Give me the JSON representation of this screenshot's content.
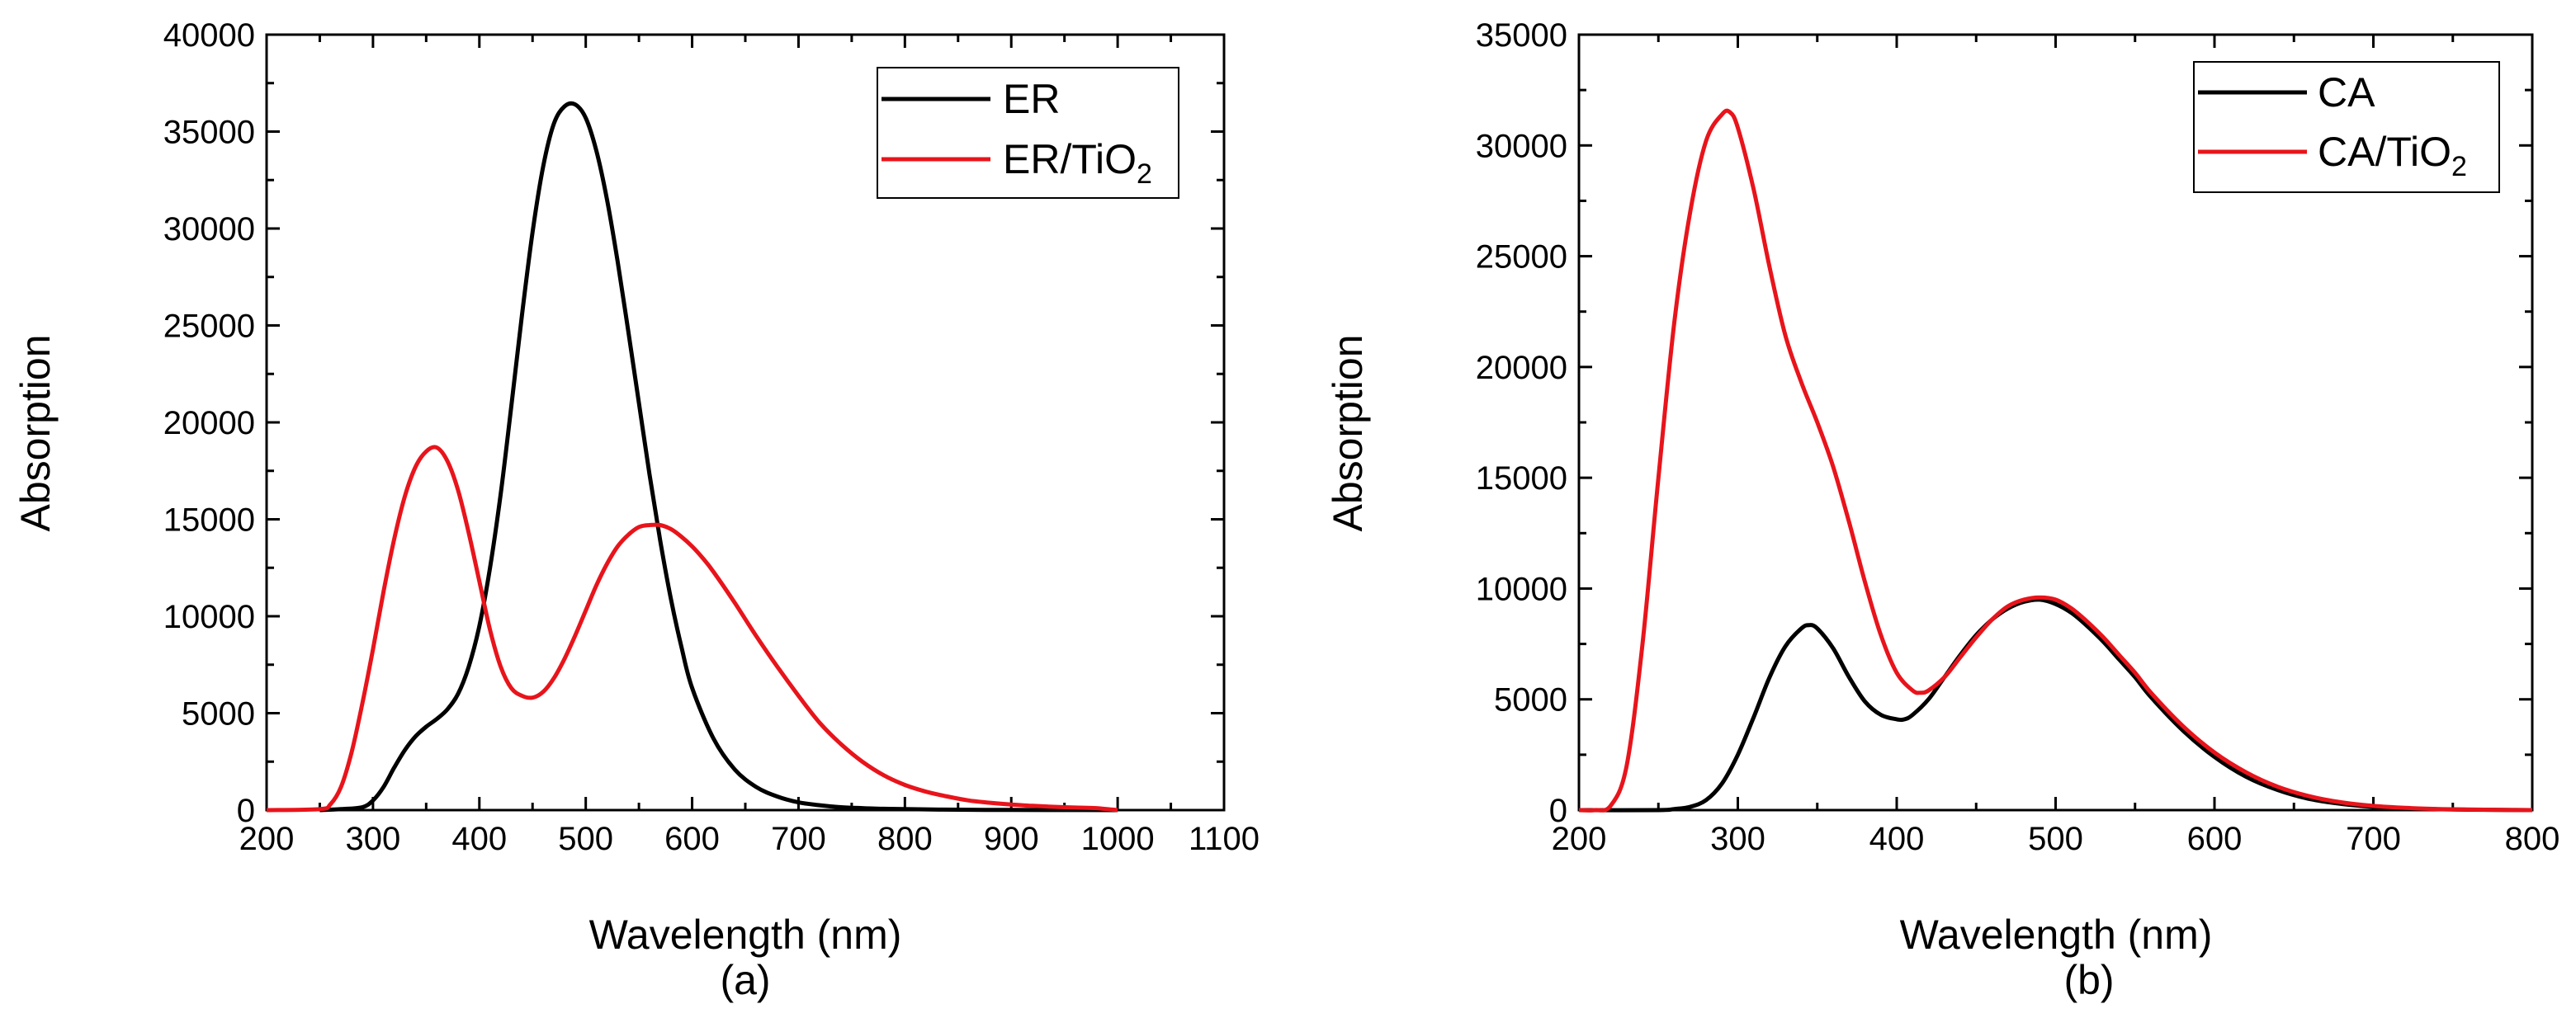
{
  "chart_data": [
    {
      "type": "line",
      "panel_label": "(a)",
      "xlabel": "Wavelength (nm)",
      "ylabel": "Absorption",
      "xlim": [
        200,
        1100
      ],
      "ylim": [
        0,
        40000
      ],
      "xticks": [
        200,
        300,
        400,
        500,
        600,
        700,
        800,
        900,
        1000,
        1100
      ],
      "yticks": [
        0,
        5000,
        10000,
        15000,
        20000,
        25000,
        30000,
        35000,
        40000
      ],
      "legend_position": "top-right",
      "grid": false,
      "series": [
        {
          "name": "ER",
          "label_main": "ER",
          "label_sub": "",
          "color": "#000000",
          "x": [
            250,
            270,
            290,
            300,
            310,
            320,
            330,
            340,
            350,
            360,
            370,
            380,
            390,
            400,
            410,
            420,
            430,
            440,
            450,
            460,
            470,
            480,
            490,
            500,
            510,
            520,
            530,
            540,
            550,
            560,
            570,
            580,
            590,
            600,
            620,
            640,
            660,
            680,
            700,
            720,
            740,
            760,
            780,
            800,
            850,
            900,
            950,
            1000
          ],
          "y": [
            0,
            50,
            150,
            500,
            1200,
            2200,
            3100,
            3800,
            4300,
            4700,
            5200,
            6000,
            7400,
            9500,
            12500,
            16300,
            20800,
            25500,
            29800,
            33200,
            35400,
            36300,
            36400,
            35700,
            34000,
            31500,
            28300,
            24700,
            21000,
            17300,
            13900,
            10900,
            8400,
            6300,
            3700,
            2100,
            1200,
            700,
            400,
            250,
            150,
            100,
            70,
            50,
            20,
            10,
            5,
            0
          ]
        },
        {
          "name": "ER/TiO2",
          "label_main": "ER/TiO",
          "label_sub": "2",
          "color": "#e8141b",
          "x": [
            200,
            250,
            260,
            270,
            280,
            290,
            300,
            310,
            320,
            330,
            340,
            350,
            360,
            370,
            380,
            390,
            400,
            410,
            420,
            430,
            440,
            450,
            460,
            470,
            480,
            490,
            500,
            510,
            520,
            530,
            540,
            550,
            560,
            570,
            580,
            590,
            600,
            610,
            620,
            640,
            660,
            680,
            700,
            720,
            740,
            760,
            780,
            800,
            820,
            840,
            860,
            880,
            900,
            920,
            940,
            960,
            980,
            1000
          ],
          "y": [
            0,
            50,
            300,
            1200,
            3000,
            5500,
            8300,
            11300,
            14000,
            16200,
            17700,
            18500,
            18700,
            18000,
            16500,
            14300,
            11800,
            9300,
            7400,
            6300,
            5900,
            5800,
            6100,
            6800,
            7800,
            9000,
            10300,
            11600,
            12700,
            13600,
            14200,
            14600,
            14700,
            14700,
            14500,
            14100,
            13600,
            13000,
            12300,
            10700,
            9000,
            7400,
            5900,
            4500,
            3400,
            2500,
            1800,
            1300,
            950,
            700,
            500,
            380,
            290,
            220,
            170,
            130,
            100,
            0
          ]
        }
      ]
    },
    {
      "type": "line",
      "panel_label": "(b)",
      "xlabel": "Wavelength (nm)",
      "ylabel": "Absorption",
      "xlim": [
        200,
        800
      ],
      "ylim": [
        0,
        35000
      ],
      "xticks": [
        200,
        300,
        400,
        500,
        600,
        700,
        800
      ],
      "yticks": [
        0,
        5000,
        10000,
        15000,
        20000,
        25000,
        30000,
        35000
      ],
      "legend_position": "top-right",
      "grid": false,
      "series": [
        {
          "name": "CA",
          "label_main": "CA",
          "label_sub": "",
          "color": "#000000",
          "x": [
            200,
            250,
            260,
            270,
            280,
            290,
            300,
            310,
            320,
            330,
            340,
            345,
            350,
            360,
            370,
            380,
            390,
            400,
            405,
            410,
            420,
            430,
            440,
            450,
            460,
            470,
            480,
            490,
            500,
            510,
            520,
            530,
            540,
            550,
            560,
            580,
            600,
            620,
            640,
            660,
            680,
            700,
            720,
            740,
            760,
            780,
            800
          ],
          "y": [
            0,
            0,
            50,
            150,
            450,
            1200,
            2500,
            4200,
            6000,
            7400,
            8200,
            8350,
            8200,
            7300,
            6000,
            4900,
            4300,
            4100,
            4100,
            4300,
            5000,
            6000,
            7000,
            7900,
            8600,
            9100,
            9400,
            9500,
            9300,
            8900,
            8300,
            7600,
            6800,
            6000,
            5100,
            3600,
            2400,
            1500,
            900,
            500,
            280,
            150,
            80,
            40,
            20,
            10,
            0
          ]
        },
        {
          "name": "CA/TiO2",
          "label_main": "CA/TiO",
          "label_sub": "2",
          "color": "#e8141b",
          "x": [
            200,
            210,
            220,
            230,
            240,
            250,
            260,
            270,
            280,
            290,
            295,
            300,
            310,
            320,
            330,
            340,
            350,
            360,
            370,
            380,
            390,
            400,
            410,
            415,
            420,
            430,
            440,
            450,
            460,
            470,
            480,
            490,
            500,
            510,
            520,
            530,
            540,
            550,
            560,
            580,
            600,
            620,
            640,
            660,
            680,
            700,
            720,
            740,
            760,
            780,
            800
          ],
          "y": [
            0,
            0,
            200,
            2000,
            7500,
            15000,
            22000,
            27000,
            30200,
            31400,
            31500,
            30800,
            28000,
            24500,
            21400,
            19300,
            17500,
            15500,
            13000,
            10300,
            7900,
            6200,
            5400,
            5300,
            5400,
            6000,
            6900,
            7800,
            8600,
            9200,
            9500,
            9600,
            9500,
            9100,
            8500,
            7800,
            7000,
            6200,
            5300,
            3800,
            2600,
            1700,
            1050,
            620,
            350,
            190,
            100,
            50,
            25,
            10,
            0
          ]
        }
      ]
    }
  ]
}
